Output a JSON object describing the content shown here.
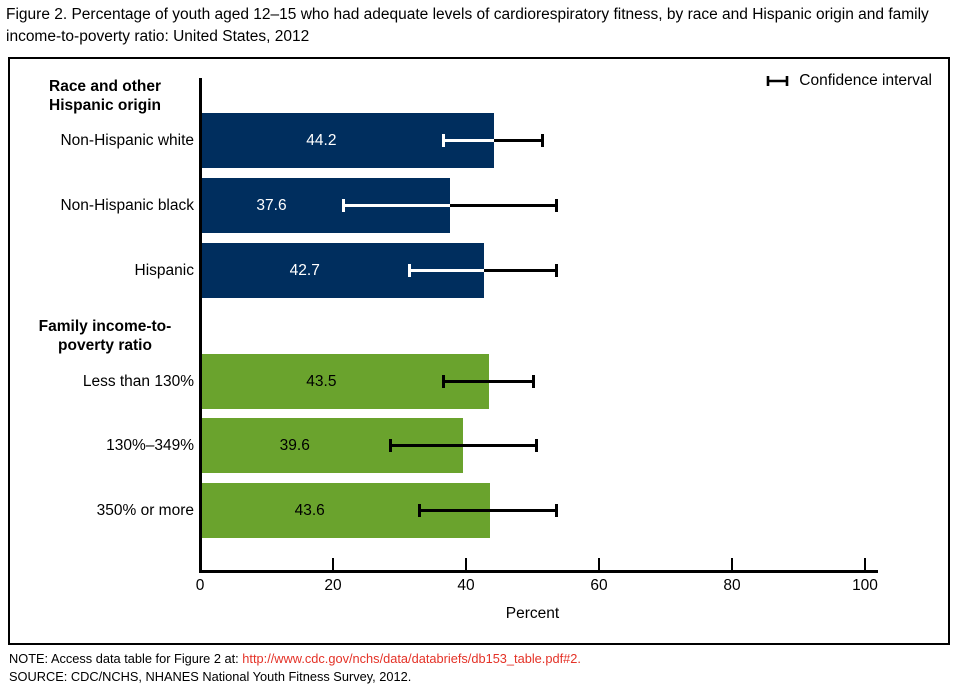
{
  "title": "Figure 2. Percentage of youth aged 12–15 who had adequate levels of cardiorespiratory fitness, by race and Hispanic origin and family income-to-poverty ratio: United States, 2012",
  "legend": {
    "label": "Confidence interval"
  },
  "footer": {
    "note_prefix": "NOTE: Access data table for Figure 2 at: ",
    "note_link": "http://www.cdc.gov/nchs/data/databriefs/db153_table.pdf#2.",
    "source": "SOURCE: CDC/NCHS, NHANES National Youth Fitness Survey, 2012."
  },
  "colors": {
    "navy": "#002e5e",
    "green": "#6aa32d",
    "link_red": "#e43227",
    "axis_black": "#000000",
    "navy_value_text": "#ffffff",
    "green_value_text": "#000000"
  },
  "chart_data": {
    "type": "bar",
    "orientation": "horizontal",
    "title": "Percentage of youth aged 12–15 with adequate cardiorespiratory fitness",
    "xlabel": "Percent",
    "xlim": [
      0,
      100
    ],
    "xticks": [
      0,
      20,
      40,
      60,
      80,
      100
    ],
    "grid": false,
    "legend_position": "top-right",
    "error_bars": "95% confidence interval",
    "groups": [
      {
        "header_lines": [
          "Race and other",
          "Hispanic origin"
        ],
        "bar_color": "#002e5e",
        "value_text_color": "#ffffff",
        "inner_whisker_color": "#ffffff",
        "bars": [
          {
            "label": "Non-Hispanic white",
            "value": 44.2,
            "ci": [
              36.5,
              51.5
            ]
          },
          {
            "label": "Non-Hispanic black",
            "value": 37.6,
            "ci": [
              21.5,
              53.5
            ]
          },
          {
            "label": "Hispanic",
            "value": 42.7,
            "ci": [
              31.5,
              53.5
            ]
          }
        ]
      },
      {
        "header_lines": [
          "Family income-to-",
          "poverty ratio"
        ],
        "bar_color": "#6aa32d",
        "value_text_color": "#000000",
        "inner_whisker_color": "#000000",
        "bars": [
          {
            "label": "Less than 130%",
            "value": 43.5,
            "ci": [
              36.5,
              50.0
            ]
          },
          {
            "label": "130%–349%",
            "value": 39.6,
            "ci": [
              28.5,
              50.5
            ]
          },
          {
            "label": "350% or more",
            "value": 43.6,
            "ci": [
              33.0,
              53.5
            ]
          }
        ]
      }
    ]
  }
}
